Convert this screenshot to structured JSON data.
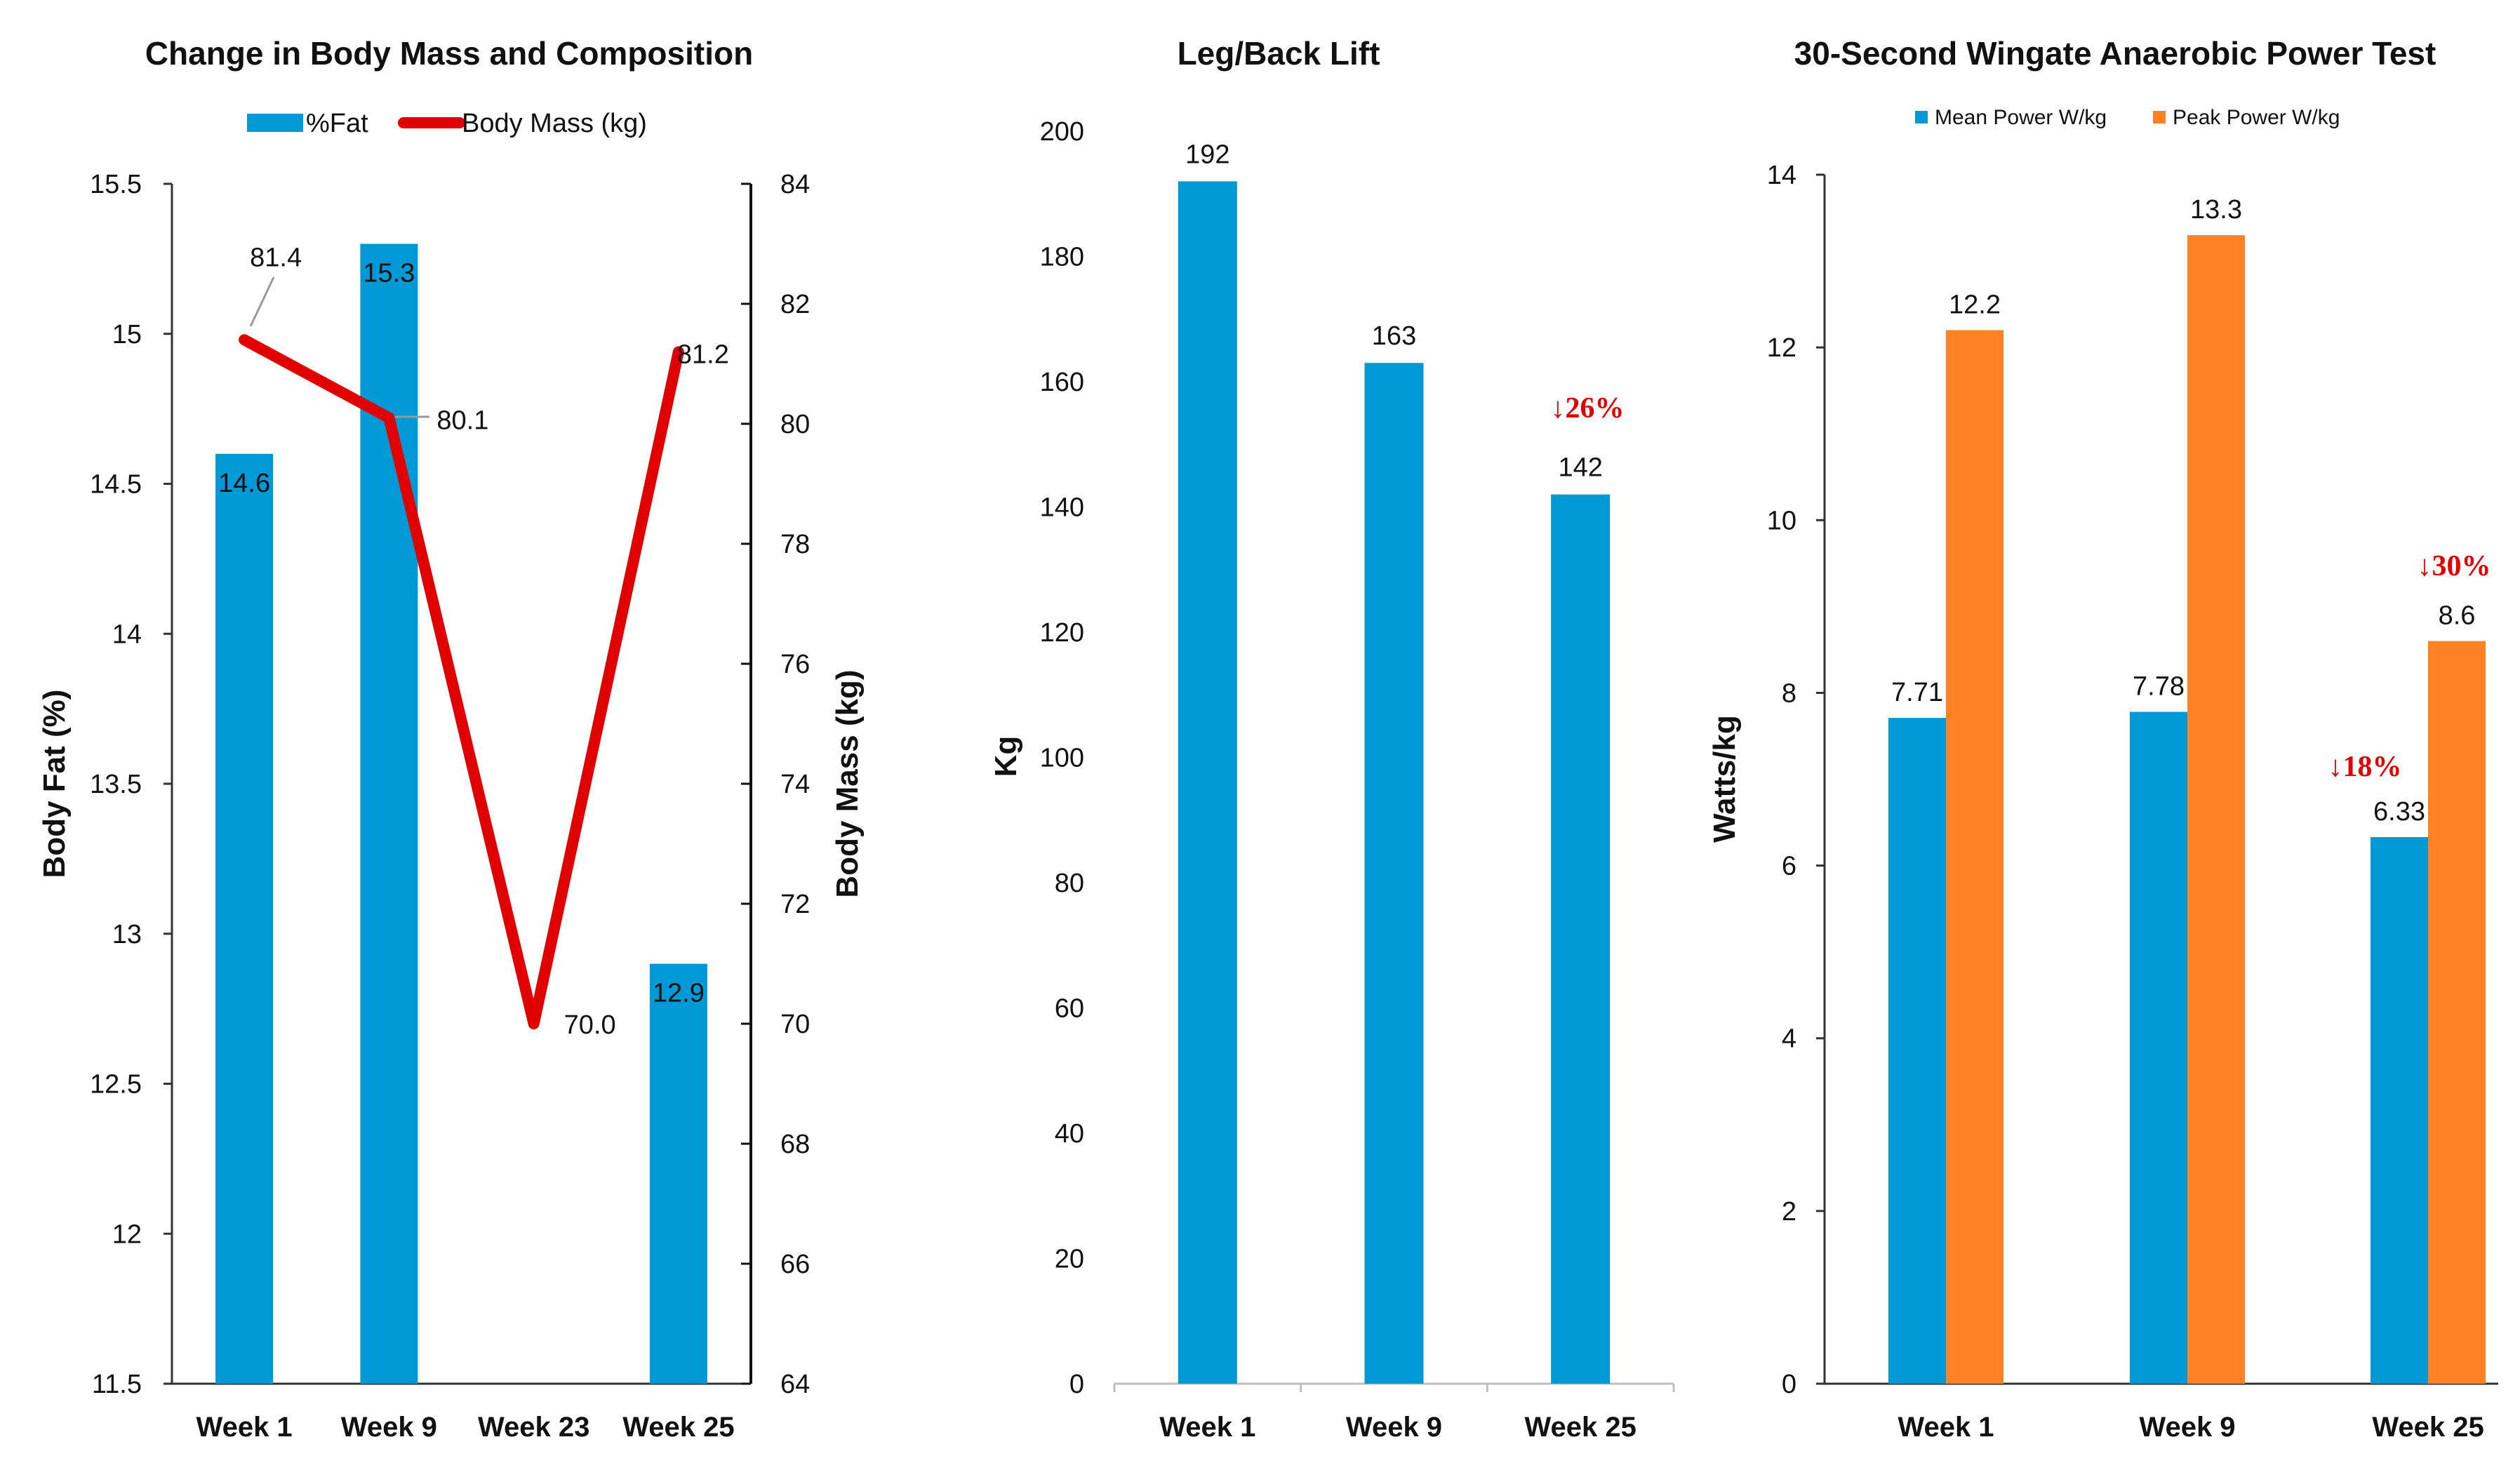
{
  "colors": {
    "blue": "#0099D6",
    "orange": "#FF8324",
    "red": "#E00000",
    "axis": "#333333",
    "grid_text": "#111111"
  },
  "chart_data": [
    {
      "type": "bar",
      "title": "Change in Body Mass and Composition",
      "categories": [
        "Week 1",
        "Week 9",
        "Week 23",
        "Week 25"
      ],
      "ylabel": "Body Fat (%)",
      "y2label": "Body Mass (kg)",
      "ylim": [
        11.5,
        15.5
      ],
      "y_ticks": [
        "15.5",
        "15",
        "14.5",
        "14",
        "13.5",
        "13",
        "12.5",
        "12",
        "11.5"
      ],
      "y2lim": [
        64,
        84
      ],
      "y2_ticks": [
        "84",
        "82",
        "80",
        "78",
        "76",
        "74",
        "72",
        "70",
        "68",
        "66",
        "64"
      ],
      "legend_position": "top",
      "series": [
        {
          "name": "%Fat",
          "kind": "bar",
          "axis": "left",
          "values": [
            14.6,
            15.3,
            null,
            12.9
          ],
          "labels": [
            "14.6",
            "15.3",
            "",
            "12.9"
          ]
        },
        {
          "name": "Body Mass (kg)",
          "kind": "line",
          "axis": "right",
          "values": [
            81.4,
            80.1,
            70.0,
            81.2
          ],
          "labels": [
            "81.4",
            "80.1",
            "70.0",
            "81.2"
          ]
        }
      ]
    },
    {
      "type": "bar",
      "title": "Leg/Back Lift",
      "categories": [
        "Week 1",
        "Week 9",
        "Week 25"
      ],
      "ylabel": "Kg",
      "ylim": [
        0,
        200
      ],
      "y_ticks": [
        "200",
        "180",
        "160",
        "140",
        "120",
        "100",
        "80",
        "60",
        "40",
        "20",
        "0"
      ],
      "series": [
        {
          "values": [
            192,
            163,
            142
          ],
          "labels": [
            "192",
            "163",
            "142"
          ]
        }
      ],
      "annotations": [
        {
          "text": "↓26%",
          "category": "Week 25"
        }
      ]
    },
    {
      "type": "bar",
      "title": "30-Second Wingate Anaerobic Power Test",
      "categories": [
        "Week 1",
        "Week 9",
        "Week 25"
      ],
      "ylabel": "Watts/kg",
      "ylim": [
        0,
        14
      ],
      "y_ticks": [
        "14",
        "12",
        "10",
        "8",
        "6",
        "4",
        "2",
        "0"
      ],
      "legend_position": "top",
      "series": [
        {
          "name": "Mean Power W/kg",
          "values": [
            7.71,
            7.78,
            6.33
          ],
          "labels": [
            "7.71",
            "7.78",
            "6.33"
          ]
        },
        {
          "name": "Peak Power W/kg",
          "values": [
            12.2,
            13.3,
            8.6
          ],
          "labels": [
            "12.2",
            "13.3",
            "8.6"
          ]
        }
      ],
      "annotations": [
        {
          "text": "↓18%",
          "category": "Week 25",
          "series": "Mean Power W/kg"
        },
        {
          "text": "↓30%",
          "category": "Week 25",
          "series": "Peak Power W/kg"
        }
      ]
    }
  ]
}
